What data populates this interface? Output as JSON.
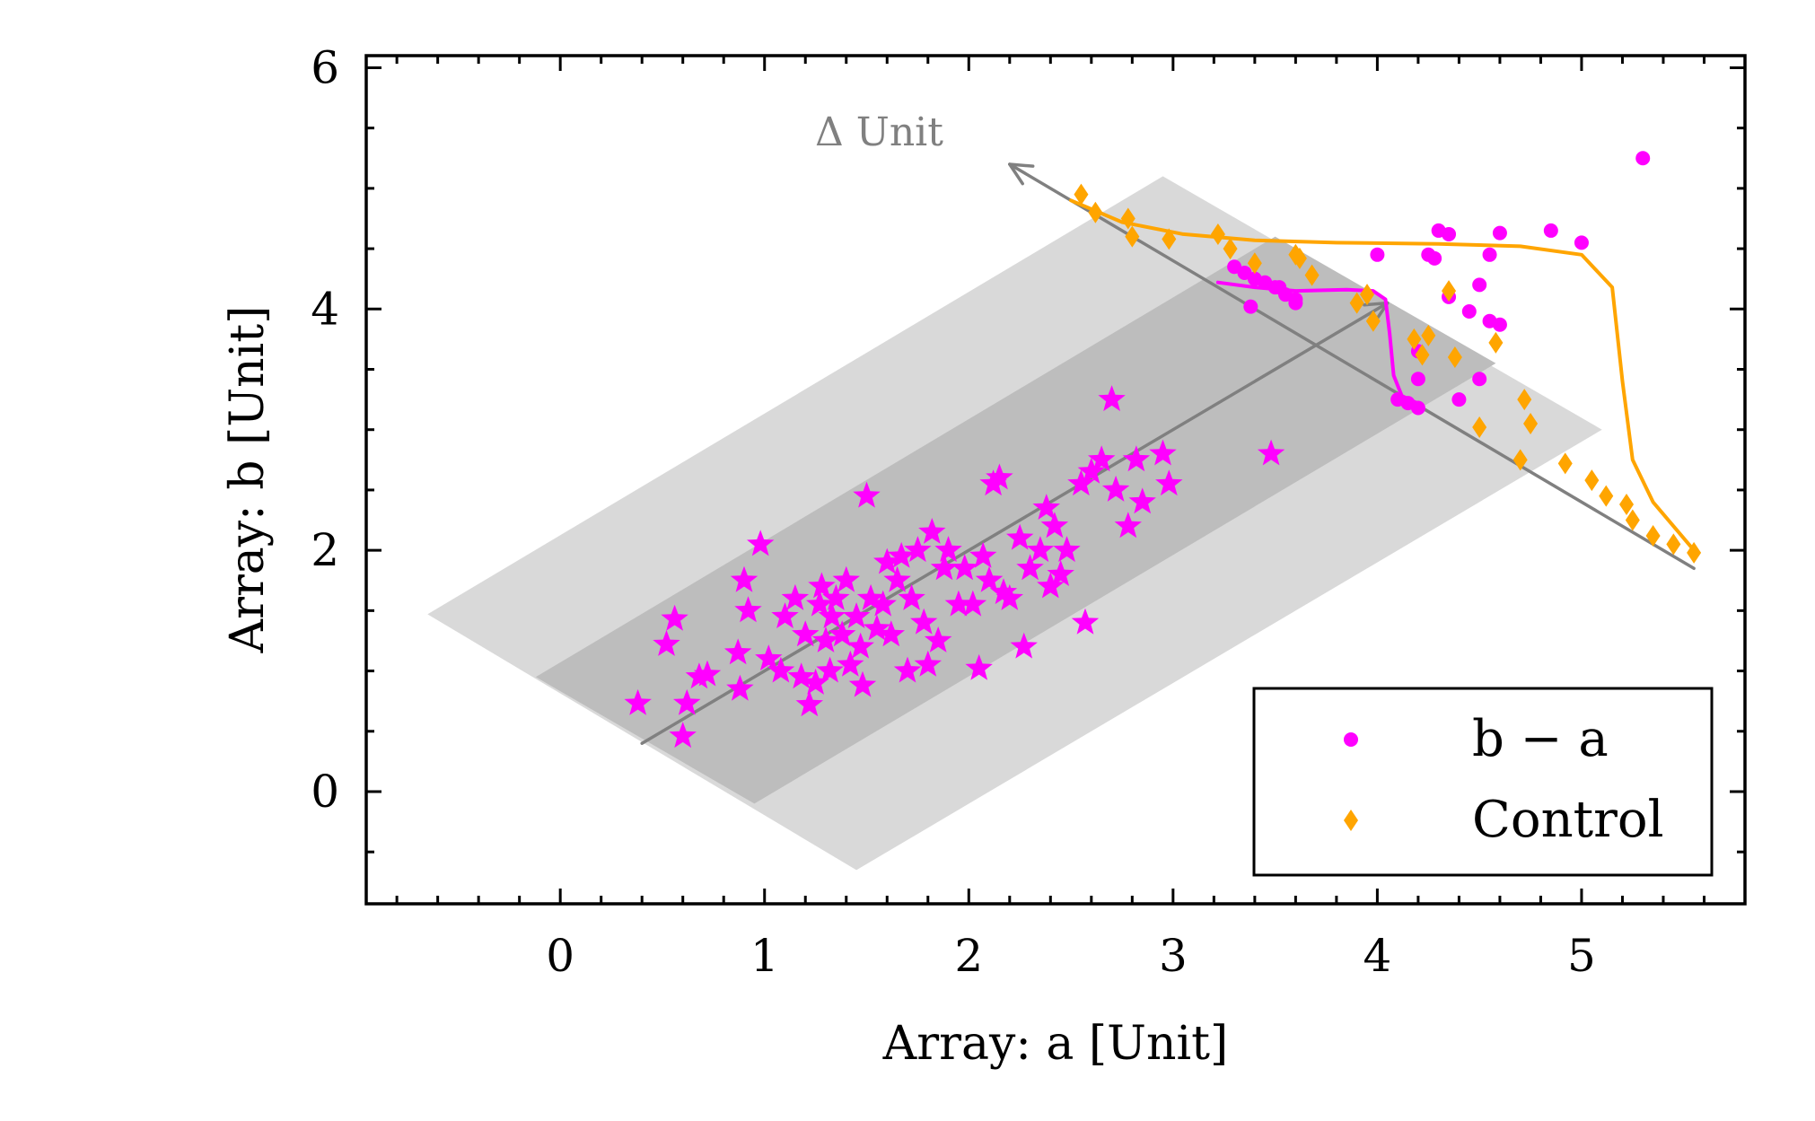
{
  "chart_data": {
    "type": "scatter",
    "xlabel": "Array: a [Unit]",
    "ylabel": "Array: b [Unit]",
    "xlim": [
      -0.95,
      5.8
    ],
    "ylim": [
      -0.93,
      6.1
    ],
    "xticks": [
      0,
      1,
      2,
      3,
      4,
      5
    ],
    "yticks": [
      0,
      2,
      4,
      6
    ],
    "grid": false,
    "legend_placement": "lower-right",
    "annotation": "Δ Unit",
    "colors": {
      "primary": "#ff00ff",
      "control": "#ffa500",
      "arrow": "#808080",
      "band_outer": "#d9d9d9",
      "band_inner": "#bdbdbd"
    },
    "bands": [
      {
        "role": "outer",
        "polygon": [
          [
            -0.65,
            1.47
          ],
          [
            2.95,
            5.1
          ],
          [
            5.1,
            3.0
          ],
          [
            1.45,
            -0.65
          ]
        ]
      },
      {
        "role": "inner",
        "polygon": [
          [
            -0.12,
            0.95
          ],
          [
            3.5,
            4.6
          ],
          [
            4.58,
            3.55
          ],
          [
            0.95,
            -0.1
          ]
        ]
      }
    ],
    "arrows": [
      {
        "from": [
          0.4,
          0.4
        ],
        "to": [
          4.05,
          4.05
        ]
      },
      {
        "from": [
          5.55,
          1.85
        ],
        "to": [
          2.2,
          5.2
        ]
      }
    ],
    "series": [
      {
        "name": "b − a",
        "role": "legend-dots",
        "marker": "circle",
        "legend_label": "b − a",
        "points": [
          [
            3.3,
            4.35
          ],
          [
            3.35,
            4.3
          ],
          [
            3.4,
            4.25
          ],
          [
            3.45,
            4.22
          ],
          [
            3.5,
            4.18
          ],
          [
            3.55,
            4.12
          ],
          [
            3.6,
            4.08
          ],
          [
            3.38,
            4.02
          ],
          [
            3.6,
            4.05
          ],
          [
            3.52,
            4.18
          ],
          [
            4.0,
            4.45
          ],
          [
            4.3,
            4.65
          ],
          [
            4.35,
            4.62
          ],
          [
            4.25,
            4.45
          ],
          [
            4.28,
            4.42
          ],
          [
            4.6,
            4.63
          ],
          [
            4.55,
            4.45
          ],
          [
            4.85,
            4.65
          ],
          [
            5.0,
            4.55
          ],
          [
            4.5,
            4.2
          ],
          [
            4.35,
            4.1
          ],
          [
            4.45,
            3.98
          ],
          [
            4.55,
            3.9
          ],
          [
            4.6,
            3.87
          ],
          [
            4.2,
            3.65
          ],
          [
            4.2,
            3.42
          ],
          [
            4.5,
            3.42
          ],
          [
            4.4,
            3.25
          ],
          [
            4.1,
            3.25
          ],
          [
            4.15,
            3.22
          ],
          [
            4.2,
            3.18
          ],
          [
            5.3,
            5.25
          ]
        ]
      },
      {
        "name": "stars",
        "marker": "star",
        "points": [
          [
            0.38,
            0.73
          ],
          [
            0.6,
            0.46
          ],
          [
            0.62,
            0.73
          ],
          [
            0.52,
            1.22
          ],
          [
            0.56,
            1.43
          ],
          [
            0.68,
            0.95
          ],
          [
            0.72,
            0.97
          ],
          [
            0.87,
            1.15
          ],
          [
            0.88,
            0.85
          ],
          [
            0.9,
            1.75
          ],
          [
            0.92,
            1.5
          ],
          [
            0.98,
            2.05
          ],
          [
            1.02,
            1.1
          ],
          [
            1.08,
            1.0
          ],
          [
            1.1,
            1.45
          ],
          [
            1.18,
            0.95
          ],
          [
            1.2,
            1.3
          ],
          [
            1.22,
            0.72
          ],
          [
            1.25,
            0.9
          ],
          [
            1.27,
            1.55
          ],
          [
            1.28,
            1.7
          ],
          [
            1.3,
            1.25
          ],
          [
            1.32,
            1.0
          ],
          [
            1.33,
            1.45
          ],
          [
            1.35,
            1.6
          ],
          [
            1.38,
            1.3
          ],
          [
            1.4,
            1.75
          ],
          [
            1.42,
            1.05
          ],
          [
            1.45,
            1.45
          ],
          [
            1.47,
            1.2
          ],
          [
            1.48,
            0.88
          ],
          [
            1.5,
            2.45
          ],
          [
            1.52,
            1.6
          ],
          [
            1.55,
            1.35
          ],
          [
            1.58,
            1.55
          ],
          [
            1.6,
            1.9
          ],
          [
            1.62,
            1.3
          ],
          [
            1.65,
            1.75
          ],
          [
            1.67,
            1.95
          ],
          [
            1.7,
            1.0
          ],
          [
            1.72,
            1.6
          ],
          [
            1.75,
            2.0
          ],
          [
            1.78,
            1.4
          ],
          [
            1.8,
            1.05
          ],
          [
            1.82,
            2.15
          ],
          [
            1.85,
            1.25
          ],
          [
            1.88,
            1.85
          ],
          [
            1.9,
            2.0
          ],
          [
            1.95,
            1.55
          ],
          [
            1.98,
            1.85
          ],
          [
            2.02,
            1.55
          ],
          [
            2.05,
            1.02
          ],
          [
            2.07,
            1.95
          ],
          [
            2.1,
            1.75
          ],
          [
            2.12,
            2.55
          ],
          [
            2.15,
            2.6
          ],
          [
            2.17,
            1.65
          ],
          [
            2.2,
            1.6
          ],
          [
            2.25,
            2.1
          ],
          [
            2.27,
            1.2
          ],
          [
            2.3,
            1.85
          ],
          [
            2.35,
            2.0
          ],
          [
            2.38,
            2.35
          ],
          [
            2.4,
            1.7
          ],
          [
            2.42,
            2.2
          ],
          [
            2.45,
            1.8
          ],
          [
            2.48,
            2.0
          ],
          [
            2.55,
            2.55
          ],
          [
            2.57,
            1.4
          ],
          [
            2.6,
            2.65
          ],
          [
            2.65,
            2.75
          ],
          [
            2.7,
            3.25
          ],
          [
            2.72,
            2.5
          ],
          [
            2.78,
            2.2
          ],
          [
            2.82,
            2.75
          ],
          [
            2.85,
            2.4
          ],
          [
            2.95,
            2.8
          ],
          [
            2.98,
            2.55
          ],
          [
            3.48,
            2.8
          ],
          [
            1.15,
            1.6
          ]
        ]
      },
      {
        "name": "Control",
        "role": "legend-diamonds",
        "marker": "diamond",
        "legend_label": "Control",
        "points": [
          [
            2.55,
            4.95
          ],
          [
            2.62,
            4.8
          ],
          [
            2.78,
            4.75
          ],
          [
            2.8,
            4.6
          ],
          [
            2.98,
            4.58
          ],
          [
            3.22,
            4.62
          ],
          [
            3.28,
            4.5
          ],
          [
            3.4,
            4.38
          ],
          [
            3.6,
            4.45
          ],
          [
            3.62,
            4.42
          ],
          [
            3.68,
            4.28
          ],
          [
            3.95,
            4.12
          ],
          [
            3.98,
            3.9
          ],
          [
            4.18,
            3.75
          ],
          [
            4.22,
            3.62
          ],
          [
            4.38,
            3.6
          ],
          [
            4.5,
            3.02
          ],
          [
            4.58,
            3.72
          ],
          [
            4.7,
            2.75
          ],
          [
            4.72,
            3.25
          ],
          [
            4.75,
            3.05
          ],
          [
            4.92,
            2.72
          ],
          [
            5.05,
            2.58
          ],
          [
            5.12,
            2.45
          ],
          [
            5.22,
            2.38
          ],
          [
            5.25,
            2.25
          ],
          [
            5.35,
            2.12
          ],
          [
            5.45,
            2.05
          ],
          [
            5.55,
            1.98
          ],
          [
            4.35,
            4.15
          ],
          [
            4.25,
            3.78
          ],
          [
            3.9,
            4.05
          ]
        ]
      }
    ],
    "lines": [
      {
        "name": "magenta curve",
        "color": "#ff00ff",
        "points": [
          [
            3.22,
            4.22
          ],
          [
            3.4,
            4.18
          ],
          [
            3.6,
            4.15
          ],
          [
            3.85,
            4.16
          ],
          [
            3.98,
            4.15
          ],
          [
            4.04,
            4.08
          ],
          [
            4.06,
            3.8
          ],
          [
            4.08,
            3.45
          ],
          [
            4.12,
            3.28
          ],
          [
            4.22,
            3.2
          ]
        ]
      },
      {
        "name": "orange curve",
        "color": "#ffa500",
        "points": [
          [
            2.5,
            4.9
          ],
          [
            2.75,
            4.72
          ],
          [
            3.05,
            4.62
          ],
          [
            3.4,
            4.57
          ],
          [
            3.8,
            4.55
          ],
          [
            4.3,
            4.54
          ],
          [
            4.7,
            4.52
          ],
          [
            5.0,
            4.45
          ],
          [
            5.15,
            4.18
          ],
          [
            5.2,
            3.4
          ],
          [
            5.25,
            2.75
          ],
          [
            5.35,
            2.4
          ],
          [
            5.45,
            2.2
          ],
          [
            5.55,
            2.0
          ]
        ]
      }
    ]
  }
}
